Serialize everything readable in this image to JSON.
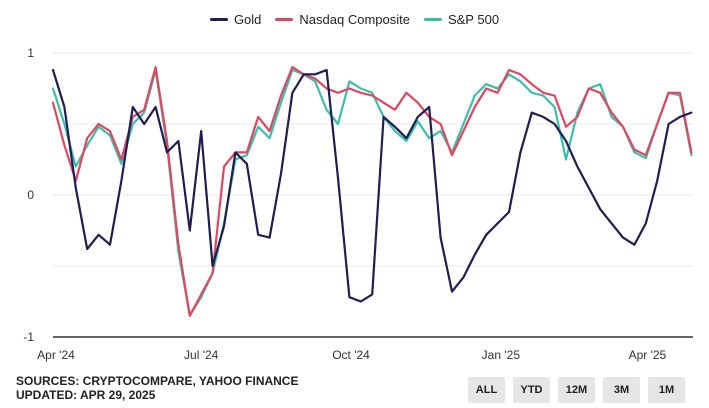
{
  "chart_data": {
    "type": "line",
    "title": "",
    "xlabel": "",
    "ylabel": "",
    "ylim": [
      -1,
      1
    ],
    "y_ticks": [
      "1",
      "0",
      "-1"
    ],
    "x_ticks": [
      "Apr '24",
      "Jul '24",
      "Oct '24",
      "Jan '25",
      "Apr '25"
    ],
    "legend_position": "top-center",
    "grid": "horizontal",
    "x": [
      "2024-04-01",
      "2024-04-08",
      "2024-04-15",
      "2024-04-22",
      "2024-04-29",
      "2024-05-06",
      "2024-05-13",
      "2024-05-20",
      "2024-05-27",
      "2024-06-03",
      "2024-06-10",
      "2024-06-17",
      "2024-06-24",
      "2024-07-01",
      "2024-07-08",
      "2024-07-15",
      "2024-07-22",
      "2024-07-29",
      "2024-08-05",
      "2024-08-12",
      "2024-08-19",
      "2024-08-26",
      "2024-09-02",
      "2024-09-09",
      "2024-09-16",
      "2024-09-23",
      "2024-09-30",
      "2024-10-07",
      "2024-10-14",
      "2024-10-21",
      "2024-10-28",
      "2024-11-04",
      "2024-11-11",
      "2024-11-18",
      "2024-11-25",
      "2024-12-02",
      "2024-12-09",
      "2024-12-16",
      "2024-12-23",
      "2024-12-30",
      "2025-01-06",
      "2025-01-13",
      "2025-01-20",
      "2025-01-27",
      "2025-02-03",
      "2025-02-10",
      "2025-02-17",
      "2025-02-24",
      "2025-03-03",
      "2025-03-10",
      "2025-03-17",
      "2025-03-24",
      "2025-03-31",
      "2025-04-07",
      "2025-04-14",
      "2025-04-21",
      "2025-04-28"
    ],
    "series": [
      {
        "name": "Gold",
        "color": "#1f1d52",
        "values": [
          0.88,
          0.62,
          0.05,
          -0.38,
          -0.28,
          -0.35,
          0.1,
          0.62,
          0.5,
          0.62,
          0.3,
          0.38,
          -0.25,
          0.45,
          -0.5,
          -0.22,
          0.3,
          0.22,
          -0.28,
          -0.3,
          0.15,
          0.72,
          0.85,
          0.85,
          0.88,
          0.12,
          -0.72,
          -0.75,
          -0.7,
          0.55,
          0.48,
          0.4,
          0.55,
          0.62,
          -0.3,
          -0.68,
          -0.58,
          -0.42,
          -0.28,
          -0.2,
          -0.12,
          0.3,
          0.58,
          0.55,
          0.5,
          0.38,
          0.2,
          0.05,
          -0.1,
          -0.2,
          -0.3,
          -0.35,
          -0.2,
          0.1,
          0.5,
          0.55,
          0.58
        ]
      },
      {
        "name": "Nasdaq Composite",
        "color": "#e0475f",
        "values": [
          0.65,
          0.35,
          0.1,
          0.4,
          0.5,
          0.45,
          0.25,
          0.55,
          0.6,
          0.9,
          0.38,
          -0.35,
          -0.85,
          -0.7,
          -0.55,
          0.2,
          0.3,
          0.3,
          0.55,
          0.45,
          0.7,
          0.9,
          0.85,
          0.82,
          0.75,
          0.72,
          0.75,
          0.72,
          0.7,
          0.65,
          0.6,
          0.72,
          0.65,
          0.55,
          0.5,
          0.28,
          0.45,
          0.62,
          0.75,
          0.72,
          0.88,
          0.85,
          0.78,
          0.72,
          0.7,
          0.48,
          0.55,
          0.75,
          0.72,
          0.58,
          0.48,
          0.32,
          0.28,
          0.5,
          0.72,
          0.72,
          0.3
        ]
      },
      {
        "name": "S&P 500",
        "color": "#3bbfad",
        "values": [
          0.75,
          0.5,
          0.2,
          0.35,
          0.48,
          0.42,
          0.22,
          0.5,
          0.58,
          0.88,
          0.35,
          -0.4,
          -0.85,
          -0.72,
          -0.55,
          -0.2,
          0.25,
          0.28,
          0.48,
          0.4,
          0.65,
          0.88,
          0.85,
          0.8,
          0.6,
          0.5,
          0.8,
          0.75,
          0.72,
          0.55,
          0.45,
          0.38,
          0.52,
          0.4,
          0.45,
          0.3,
          0.5,
          0.7,
          0.78,
          0.75,
          0.85,
          0.8,
          0.72,
          0.7,
          0.62,
          0.25,
          0.58,
          0.75,
          0.78,
          0.55,
          0.48,
          0.3,
          0.26,
          0.5,
          0.72,
          0.7,
          0.28
        ]
      }
    ]
  },
  "footer": {
    "sources": "SOURCES: CRYPTOCOMPARE, YAHOO FINANCE",
    "updated": "UPDATED: APR 29, 2025"
  },
  "range_buttons": [
    "ALL",
    "YTD",
    "12M",
    "3M",
    "1M"
  ]
}
